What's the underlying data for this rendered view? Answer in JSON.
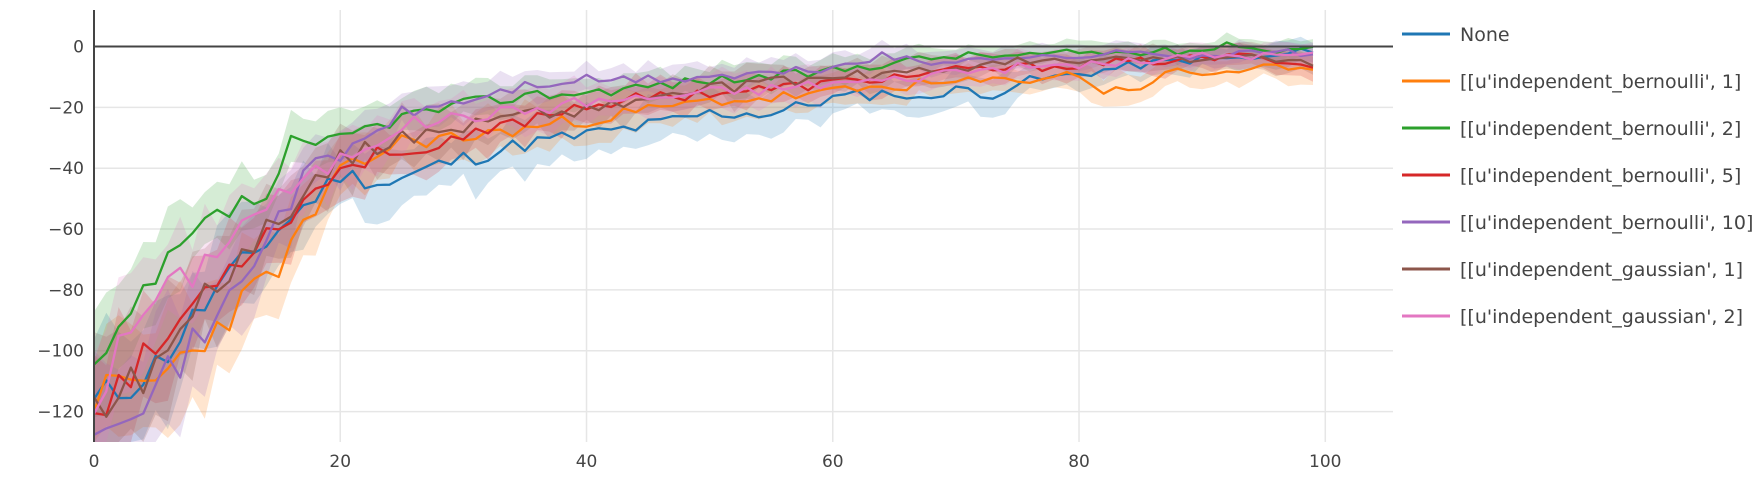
{
  "chart_data": {
    "type": "line",
    "title": "",
    "xlabel": "",
    "ylabel": "",
    "xlim": [
      0,
      105.5
    ],
    "ylim": [
      -130,
      12
    ],
    "x_ticks": [
      0,
      20,
      40,
      60,
      80,
      100
    ],
    "y_ticks": [
      0,
      -20,
      -40,
      -60,
      -80,
      -100,
      -120
    ],
    "zero_line": true,
    "grid": true,
    "legend_position": "right",
    "series": [
      {
        "name": "None",
        "color": "#1f77b4",
        "anchors": [
          [
            0,
            -118
          ],
          [
            5,
            -105
          ],
          [
            10,
            -80
          ],
          [
            15,
            -60
          ],
          [
            20,
            -42
          ],
          [
            24,
            -45
          ],
          [
            28,
            -39
          ],
          [
            35,
            -32
          ],
          [
            40,
            -29
          ],
          [
            45,
            -26
          ],
          [
            50,
            -22
          ],
          [
            55,
            -22
          ],
          [
            60,
            -17
          ],
          [
            65,
            -15
          ],
          [
            67,
            -18
          ],
          [
            70,
            -13
          ],
          [
            72,
            -17
          ],
          [
            75,
            -12
          ],
          [
            80,
            -9
          ],
          [
            85,
            -6
          ],
          [
            90,
            -4
          ],
          [
            95,
            -4
          ],
          [
            99,
            -1
          ]
        ],
        "band_scale": 1.3,
        "noise_seed": 11
      },
      {
        "name": "[[u'independent_bernoulli', 1]",
        "color": "#ff7f0e",
        "anchors": [
          [
            0,
            -115
          ],
          [
            5,
            -110
          ],
          [
            10,
            -92
          ],
          [
            15,
            -72
          ],
          [
            20,
            -42
          ],
          [
            25,
            -31
          ],
          [
            30,
            -30
          ],
          [
            35,
            -27
          ],
          [
            40,
            -24
          ],
          [
            45,
            -21
          ],
          [
            50,
            -18
          ],
          [
            55,
            -17
          ],
          [
            60,
            -15
          ],
          [
            65,
            -13
          ],
          [
            70,
            -12
          ],
          [
            75,
            -11
          ],
          [
            80,
            -9
          ],
          [
            82,
            -15
          ],
          [
            85,
            -13
          ],
          [
            88,
            -8
          ],
          [
            90,
            -9
          ],
          [
            95,
            -7
          ],
          [
            99,
            -9
          ]
        ],
        "band_scale": 1.3,
        "noise_seed": 23
      },
      {
        "name": "[[u'independent_bernoulli', 2]",
        "color": "#2ca02c",
        "anchors": [
          [
            0,
            -107
          ],
          [
            2,
            -98
          ],
          [
            4,
            -82
          ],
          [
            6,
            -72
          ],
          [
            8,
            -63
          ],
          [
            10,
            -56
          ],
          [
            12,
            -52
          ],
          [
            14,
            -50
          ],
          [
            16,
            -32
          ],
          [
            18,
            -34
          ],
          [
            20,
            -30
          ],
          [
            25,
            -23
          ],
          [
            30,
            -19
          ],
          [
            35,
            -16
          ],
          [
            40,
            -15
          ],
          [
            45,
            -13
          ],
          [
            50,
            -11
          ],
          [
            55,
            -10
          ],
          [
            60,
            -8
          ],
          [
            65,
            -5
          ],
          [
            70,
            -3
          ],
          [
            75,
            -3
          ],
          [
            80,
            -2
          ],
          [
            85,
            -2
          ],
          [
            90,
            -1
          ],
          [
            93,
            1
          ],
          [
            96,
            -2
          ],
          [
            99,
            1
          ]
        ],
        "band_scale": 1.2,
        "noise_seed": 37
      },
      {
        "name": "[[u'independent_bernoulli', 5]",
        "color": "#d62728",
        "anchors": [
          [
            0,
            -118
          ],
          [
            5,
            -100
          ],
          [
            10,
            -75
          ],
          [
            15,
            -58
          ],
          [
            20,
            -40
          ],
          [
            25,
            -33
          ],
          [
            27,
            -35
          ],
          [
            30,
            -31
          ],
          [
            35,
            -24
          ],
          [
            40,
            -19
          ],
          [
            45,
            -17
          ],
          [
            50,
            -15
          ],
          [
            55,
            -14
          ],
          [
            60,
            -12
          ],
          [
            65,
            -10
          ],
          [
            70,
            -8
          ],
          [
            75,
            -7
          ],
          [
            80,
            -6
          ],
          [
            85,
            -5
          ],
          [
            90,
            -4
          ],
          [
            95,
            -3
          ],
          [
            99,
            -7
          ]
        ],
        "band_scale": 1.2,
        "noise_seed": 53
      },
      {
        "name": "[[u'independent_bernoulli', 10]",
        "color": "#9467bd",
        "anchors": [
          [
            0,
            -121
          ],
          [
            5,
            -112
          ],
          [
            10,
            -90
          ],
          [
            14,
            -62
          ],
          [
            18,
            -38
          ],
          [
            20,
            -36
          ],
          [
            25,
            -22
          ],
          [
            30,
            -18
          ],
          [
            35,
            -13
          ],
          [
            40,
            -11
          ],
          [
            45,
            -11
          ],
          [
            50,
            -10
          ],
          [
            55,
            -9
          ],
          [
            60,
            -7
          ],
          [
            64,
            -3
          ],
          [
            68,
            -6
          ],
          [
            72,
            -3
          ],
          [
            76,
            -4
          ],
          [
            80,
            -3
          ],
          [
            85,
            -2
          ],
          [
            90,
            -3
          ],
          [
            95,
            -2
          ],
          [
            99,
            -2
          ]
        ],
        "band_scale": 1.2,
        "noise_seed": 71
      },
      {
        "name": "[[u'independent_gaussian', 1]",
        "color": "#8c564b",
        "anchors": [
          [
            0,
            -119
          ],
          [
            5,
            -105
          ],
          [
            10,
            -77
          ],
          [
            15,
            -56
          ],
          [
            20,
            -37
          ],
          [
            25,
            -30
          ],
          [
            30,
            -26
          ],
          [
            35,
            -22
          ],
          [
            40,
            -21
          ],
          [
            45,
            -17
          ],
          [
            50,
            -14
          ],
          [
            55,
            -12
          ],
          [
            60,
            -10
          ],
          [
            65,
            -9
          ],
          [
            70,
            -7
          ],
          [
            75,
            -5
          ],
          [
            80,
            -5
          ],
          [
            85,
            -4
          ],
          [
            90,
            -4
          ],
          [
            95,
            -4
          ],
          [
            99,
            -5
          ]
        ],
        "band_scale": 1.25,
        "noise_seed": 89
      },
      {
        "name": "[[u'independent_gaussian', 2]",
        "color": "#e377c2",
        "anchors": [
          [
            0,
            -117
          ],
          [
            2,
            -100
          ],
          [
            4,
            -87
          ],
          [
            6,
            -79
          ],
          [
            8,
            -75
          ],
          [
            10,
            -66
          ],
          [
            12,
            -58
          ],
          [
            14,
            -52
          ],
          [
            16,
            -47
          ],
          [
            18,
            -42
          ],
          [
            20,
            -37
          ],
          [
            25,
            -26
          ],
          [
            30,
            -23
          ],
          [
            35,
            -21
          ],
          [
            40,
            -18
          ],
          [
            45,
            -17
          ],
          [
            50,
            -15
          ],
          [
            55,
            -14
          ],
          [
            60,
            -12
          ],
          [
            65,
            -11
          ],
          [
            70,
            -8
          ],
          [
            75,
            -7
          ],
          [
            80,
            -6
          ],
          [
            85,
            -5
          ],
          [
            90,
            -3
          ],
          [
            95,
            -3
          ],
          [
            99,
            -3
          ]
        ],
        "band_scale": 1.3,
        "noise_seed": 101
      }
    ]
  }
}
